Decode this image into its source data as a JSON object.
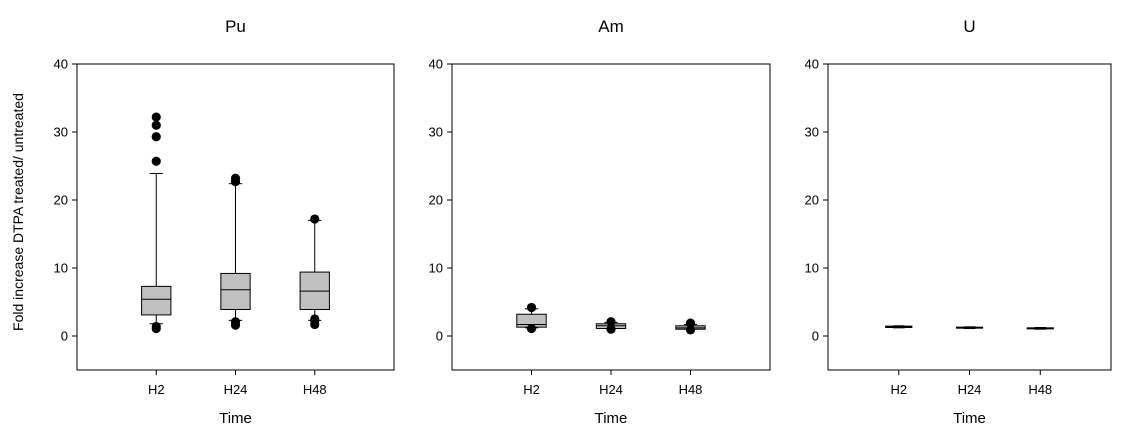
{
  "chart_data": [
    {
      "type": "box",
      "title": "Pu",
      "xlabel": "Time",
      "ylabel": "Fold increase DTPA treated/ untreated",
      "ylim": [
        -5,
        40
      ],
      "yticks": [
        0,
        10,
        20,
        30,
        40
      ],
      "grid": false,
      "categories": [
        "H2",
        "H24",
        "H48"
      ],
      "boxes": [
        {
          "label": "H2",
          "whisker_low": 1.8,
          "q1": 3.1,
          "median": 5.4,
          "q3": 7.3,
          "whisker_high": 23.9,
          "outliers": [
            1.1,
            1.4,
            25.7,
            29.3,
            31.0,
            32.2
          ]
        },
        {
          "label": "H24",
          "whisker_low": 2.3,
          "q1": 3.9,
          "median": 6.8,
          "q3": 9.2,
          "whisker_high": 22.4,
          "outliers": [
            1.6,
            2.1,
            22.7,
            23.2
          ]
        },
        {
          "label": "H48",
          "whisker_low": 2.3,
          "q1": 3.9,
          "median": 6.6,
          "q3": 9.4,
          "whisker_high": 17.0,
          "outliers": [
            1.7,
            2.2,
            2.5,
            17.2
          ]
        }
      ]
    },
    {
      "type": "box",
      "title": "Am",
      "xlabel": "Time",
      "ylabel": "",
      "ylim": [
        -5,
        40
      ],
      "yticks": [
        0,
        10,
        20,
        30,
        40
      ],
      "grid": false,
      "categories": [
        "H2",
        "H24",
        "H48"
      ],
      "boxes": [
        {
          "label": "H2",
          "whisker_low": 1.2,
          "q1": 1.3,
          "median": 1.7,
          "q3": 3.2,
          "whisker_high": 4.0,
          "outliers": [
            1.1,
            4.2
          ]
        },
        {
          "label": "H24",
          "whisker_low": 1.1,
          "q1": 1.1,
          "median": 1.5,
          "q3": 1.8,
          "whisker_high": 2.0,
          "outliers": [
            1.0,
            2.1
          ]
        },
        {
          "label": "H48",
          "whisker_low": 1.0,
          "q1": 1.0,
          "median": 1.2,
          "q3": 1.5,
          "whisker_high": 1.7,
          "outliers": [
            0.9,
            1.9
          ]
        }
      ]
    },
    {
      "type": "box",
      "title": "U",
      "xlabel": "Time",
      "ylabel": "",
      "ylim": [
        -5,
        40
      ],
      "yticks": [
        0,
        10,
        20,
        30,
        40
      ],
      "grid": false,
      "categories": [
        "H2",
        "H24",
        "H48"
      ],
      "boxes": [
        {
          "label": "H2",
          "whisker_low": 1.2,
          "q1": 1.25,
          "median": 1.35,
          "q3": 1.45,
          "whisker_high": 1.5,
          "outliers": []
        },
        {
          "label": "H24",
          "whisker_low": 1.1,
          "q1": 1.15,
          "median": 1.25,
          "q3": 1.3,
          "whisker_high": 1.35,
          "outliers": []
        },
        {
          "label": "H48",
          "whisker_low": 1.0,
          "q1": 1.05,
          "median": 1.1,
          "q3": 1.2,
          "whisker_high": 1.25,
          "outliers": []
        }
      ]
    }
  ]
}
